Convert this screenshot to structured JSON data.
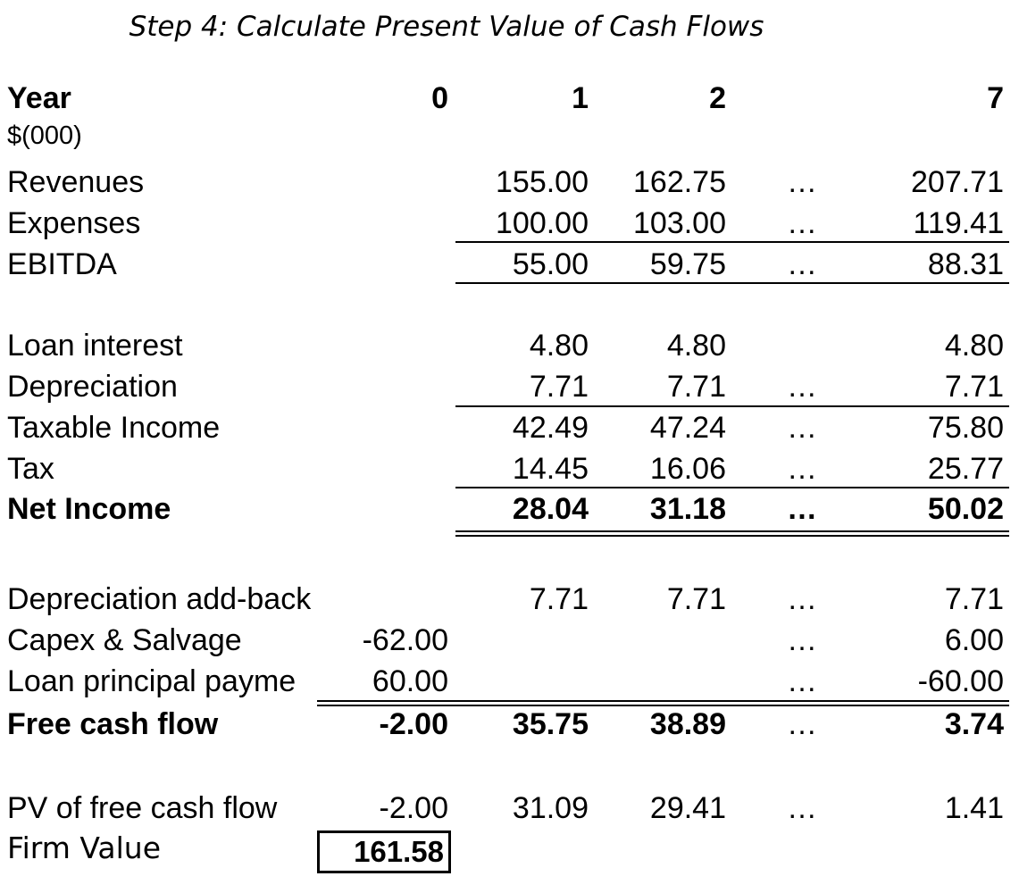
{
  "title": "Step 4: Calculate Present Value of Cash Flows",
  "header": {
    "label": "Year",
    "unit": "$(000)",
    "years": [
      "0",
      "1",
      "2",
      "7"
    ]
  },
  "ellipsis": "…",
  "rows": [
    {
      "label": "Revenues",
      "y0": "",
      "y1": "155.00",
      "y2": "162.75",
      "y7": "207.71",
      "dots": "…"
    },
    {
      "label": "Expenses",
      "y0": "",
      "y1": "100.00",
      "y2": "103.00",
      "y7": "119.41",
      "dots": "…"
    },
    {
      "label": "EBITDA",
      "y0": "",
      "y1": "55.00",
      "y2": "59.75",
      "y7": "88.31",
      "dots": "…"
    },
    {
      "label": "Loan interest",
      "y0": "",
      "y1": "4.80",
      "y2": "4.80",
      "y7": "4.80",
      "dots": ""
    },
    {
      "label": "Depreciation",
      "y0": "",
      "y1": "7.71",
      "y2": "7.71",
      "y7": "7.71",
      "dots": "…"
    },
    {
      "label": "Taxable Income",
      "y0": "",
      "y1": "42.49",
      "y2": "47.24",
      "y7": "75.80",
      "dots": "…"
    },
    {
      "label": "Tax",
      "y0": "",
      "y1": "14.45",
      "y2": "16.06",
      "y7": "25.77",
      "dots": "…"
    },
    {
      "label": "Net Income",
      "y0": "",
      "y1": "28.04",
      "y2": "31.18",
      "y7": "50.02",
      "dots": "…"
    },
    {
      "label": "Depreciation add-back",
      "y0": "",
      "y1": "7.71",
      "y2": "7.71",
      "y7": "7.71",
      "dots": "…"
    },
    {
      "label": "Capex & Salvage",
      "y0": "-62.00",
      "y1": "",
      "y2": "",
      "y7": "6.00",
      "dots": "…"
    },
    {
      "label": "Loan principal payme",
      "y0": "60.00",
      "y1": "",
      "y2": "",
      "y7": "-60.00",
      "dots": "…"
    },
    {
      "label": "Free cash flow",
      "y0": "-2.00",
      "y1": "35.75",
      "y2": "38.89",
      "y7": "3.74",
      "dots": "…"
    },
    {
      "label": "PV of free cash flow",
      "y0": "-2.00",
      "y1": "31.09",
      "y2": "29.41",
      "y7": "1.41",
      "dots": "…"
    }
  ],
  "firm_value": {
    "label": "Firm Value",
    "value": "161.58"
  }
}
